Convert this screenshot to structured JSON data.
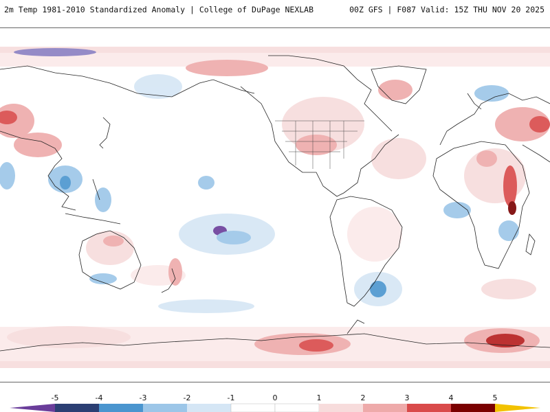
{
  "header": {
    "title": "2m Temp 1981-2010 Standardized Anomaly | College of DuPage NEXLAB",
    "run_info": "00Z GFS | F087 Valid: 15Z THU NOV 20 2025"
  },
  "colorbar": {
    "ticks": [
      "-5",
      "-4",
      "-3",
      "-2",
      "-1",
      "0",
      "1",
      "2",
      "3",
      "4",
      "5"
    ],
    "colors": {
      "extreme_neg": "#6a3d9a",
      "neg5": "#2b3f73",
      "neg4": "#2f5f9a",
      "neg3": "#4a95cf",
      "neg2": "#9cc6e8",
      "neg1": "#d5e6f5",
      "pos1": "#f7dcdc",
      "pos2": "#eeaaaa",
      "pos3": "#d94a4a",
      "pos4": "#b51c1c",
      "pos5": "#7a0000",
      "extreme_pos": "#f2c200"
    }
  }
}
